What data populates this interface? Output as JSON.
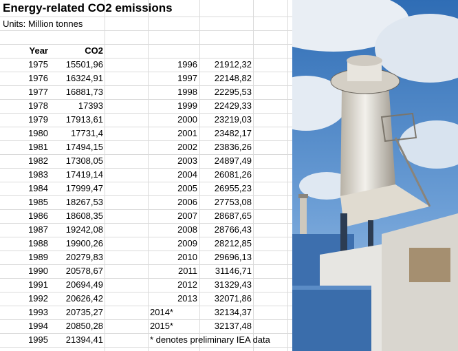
{
  "title": "Energy-related CO2 emissions",
  "units": "Units: Million tonnes",
  "table": {
    "headers": [
      "Year",
      "CO2"
    ],
    "left_rows": [
      [
        "1975",
        "15501,96"
      ],
      [
        "1976",
        "16324,91"
      ],
      [
        "1977",
        "16881,73"
      ],
      [
        "1978",
        "17393"
      ],
      [
        "1979",
        "17913,61"
      ],
      [
        "1980",
        "17731,4"
      ],
      [
        "1981",
        "17494,15"
      ],
      [
        "1982",
        "17308,05"
      ],
      [
        "1983",
        "17419,14"
      ],
      [
        "1984",
        "17999,47"
      ],
      [
        "1985",
        "18267,53"
      ],
      [
        "1986",
        "18608,35"
      ],
      [
        "1987",
        "19242,08"
      ],
      [
        "1988",
        "19900,26"
      ],
      [
        "1989",
        "20279,83"
      ],
      [
        "1990",
        "20578,67"
      ],
      [
        "1991",
        "20694,49"
      ],
      [
        "1992",
        "20626,42"
      ],
      [
        "1993",
        "20735,27"
      ],
      [
        "1994",
        "20850,28"
      ],
      [
        "1995",
        "21394,41"
      ]
    ],
    "right_rows": [
      [
        "1996",
        "21912,32"
      ],
      [
        "1997",
        "22148,82"
      ],
      [
        "1998",
        "22295,53"
      ],
      [
        "1999",
        "22429,33"
      ],
      [
        "2000",
        "23219,03"
      ],
      [
        "2001",
        "23482,17"
      ],
      [
        "2002",
        "23836,26"
      ],
      [
        "2003",
        "24897,49"
      ],
      [
        "2004",
        "26081,26"
      ],
      [
        "2005",
        "26955,23"
      ],
      [
        "2006",
        "27753,08"
      ],
      [
        "2007",
        "28687,65"
      ],
      [
        "2008",
        "28766,43"
      ],
      [
        "2009",
        "28212,85"
      ],
      [
        "2010",
        "29696,13"
      ],
      [
        "2011",
        "31146,71"
      ],
      [
        "2012",
        "31329,43"
      ],
      [
        "2013",
        "32071,86"
      ],
      [
        "2014*",
        "32134,37"
      ],
      [
        "2015*",
        "32137,48"
      ]
    ]
  },
  "note": "* denotes preliminary IEA data"
}
